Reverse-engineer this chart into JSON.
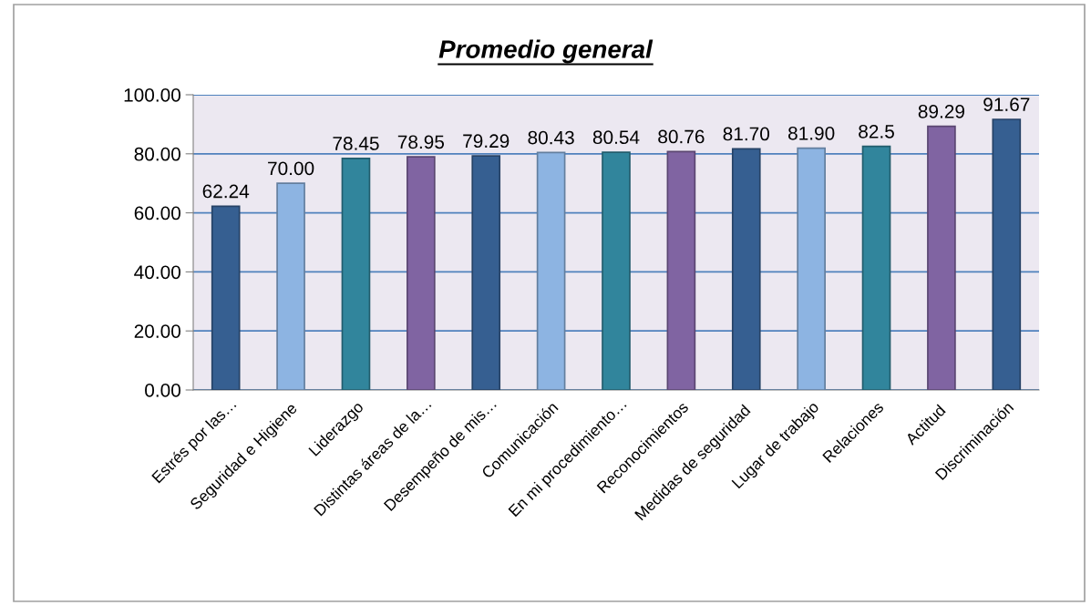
{
  "chart_data": {
    "type": "bar",
    "title": "Promedio general",
    "categories": [
      "Estrés por las…",
      "Seguridad e Higiene",
      "Liderazgo",
      "Distintas áreas de la…",
      "Desempeño de mis…",
      "Comunicación",
      "En mi procedimiento…",
      "Reconocimientos",
      "Medidas de seguridad",
      "Lugar de trabajo",
      "Relaciones",
      "Actitud",
      "Discriminación"
    ],
    "values": [
      62.24,
      70.0,
      78.45,
      78.95,
      79.29,
      80.43,
      80.54,
      80.76,
      81.7,
      81.9,
      82.5,
      89.29,
      91.67
    ],
    "value_labels": [
      "62.24",
      "70.00",
      "78.45",
      "78.95",
      "79.29",
      "80.43",
      "80.54",
      "80.76",
      "81.70",
      "81.90",
      "82.5",
      "89.29",
      "91.67"
    ],
    "colors": [
      "#365f91",
      "#8db4e2",
      "#31859c",
      "#8064a2",
      "#365f91",
      "#8db4e2",
      "#31859c",
      "#8064a2",
      "#365f91",
      "#8db4e2",
      "#31859c",
      "#8064a2",
      "#365f91"
    ],
    "ylim": [
      0,
      100
    ],
    "yticks": [
      {
        "value": 0,
        "label": "0.00"
      },
      {
        "value": 20,
        "label": "20.00"
      },
      {
        "value": 40,
        "label": "40.00"
      },
      {
        "value": 60,
        "label": "60.00"
      },
      {
        "value": 80,
        "label": "80.00"
      },
      {
        "value": 100,
        "label": "100.00"
      }
    ],
    "grid": "y",
    "legend": false
  }
}
